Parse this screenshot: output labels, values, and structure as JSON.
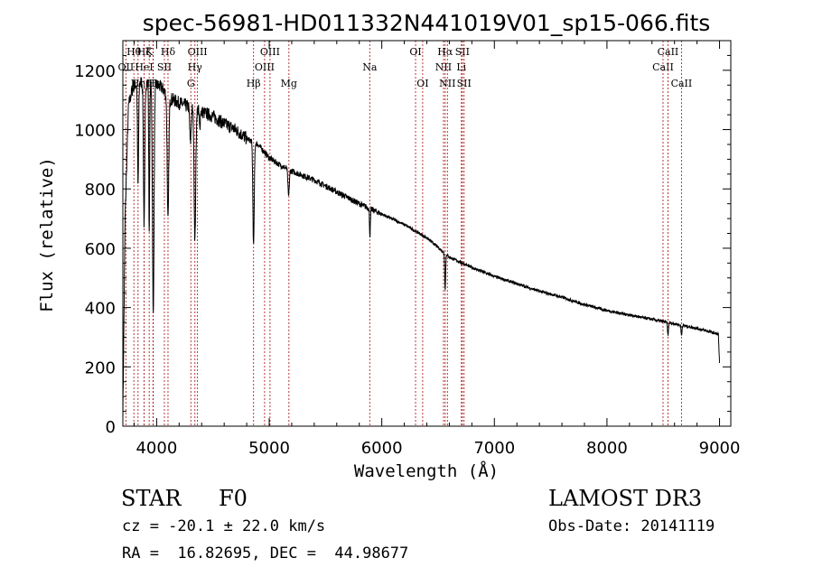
{
  "chart_data": {
    "type": "line",
    "title": "spec-56981-HD011332N441019V01_sp15-066.fits",
    "xlabel": "Wavelength (Å)",
    "ylabel": "Flux (relative)",
    "xlim": [
      3700,
      9100
    ],
    "ylim": [
      0,
      1300
    ],
    "xticks": [
      4000,
      5000,
      6000,
      7000,
      8000,
      9000
    ],
    "yticks": [
      0,
      200,
      400,
      600,
      800,
      1000,
      1200
    ],
    "grid": false,
    "continuum": {
      "x": [
        3700,
        3720,
        3750,
        3780,
        3800,
        3850,
        3900,
        3950,
        4000,
        4050,
        4100,
        4150,
        4200,
        4300,
        4400,
        4500,
        4600,
        4700,
        4800,
        4900,
        5000,
        5100,
        5200,
        5400,
        5600,
        5800,
        6000,
        6200,
        6400,
        6600,
        6800,
        7000,
        7200,
        7400,
        7600,
        7800,
        8000,
        8200,
        8400,
        8600,
        8800,
        8990,
        9000
      ],
      "y": [
        20,
        700,
        1080,
        1130,
        1150,
        1160,
        1160,
        1155,
        1150,
        1140,
        1110,
        1100,
        1090,
        1075,
        1060,
        1045,
        1020,
        1000,
        970,
        950,
        905,
        880,
        860,
        830,
        790,
        750,
        715,
        680,
        635,
        570,
        535,
        505,
        480,
        455,
        435,
        410,
        390,
        375,
        360,
        345,
        330,
        310,
        210
      ]
    },
    "absorption_lines": [
      {
        "center": 3835,
        "depth": 350,
        "width": 5
      },
      {
        "center": 3889,
        "depth": 480,
        "width": 6
      },
      {
        "center": 3934,
        "depth": 500,
        "width": 4
      },
      {
        "center": 3970,
        "depth": 780,
        "width": 7
      },
      {
        "center": 4101,
        "depth": 420,
        "width": 7
      },
      {
        "center": 4300,
        "depth": 120,
        "width": 6
      },
      {
        "center": 4340,
        "depth": 440,
        "width": 7
      },
      {
        "center": 4383,
        "depth": 60,
        "width": 4
      },
      {
        "center": 4861,
        "depth": 350,
        "width": 6
      },
      {
        "center": 5172,
        "depth": 90,
        "width": 6
      },
      {
        "center": 5895,
        "depth": 90,
        "width": 4
      },
      {
        "center": 6563,
        "depth": 120,
        "width": 4
      },
      {
        "center": 8542,
        "depth": 45,
        "width": 4
      },
      {
        "center": 8662,
        "depth": 35,
        "width": 4
      }
    ],
    "lines": [
      {
        "label": "OII",
        "wavelength": 3727,
        "row": 2
      },
      {
        "label": "Hθ",
        "wavelength": 3798,
        "row": 1
      },
      {
        "label": "Hη",
        "wavelength": 3835,
        "row": 3
      },
      {
        "label": "Hζ",
        "wavelength": 3889,
        "row": 1
      },
      {
        "label": "HeI",
        "wavelength": 3889,
        "row": 2
      },
      {
        "label": "K",
        "wavelength": 3934,
        "row": 1
      },
      {
        "label": "H",
        "wavelength": 3968,
        "row": 3
      },
      {
        "label": "Hε",
        "wavelength": 3970,
        "row": 3
      },
      {
        "label": "SII",
        "wavelength": 4069,
        "row": 2
      },
      {
        "label": "Hδ",
        "wavelength": 4101,
        "row": 1
      },
      {
        "label": "G",
        "wavelength": 4304,
        "row": 3
      },
      {
        "label": "Hγ",
        "wavelength": 4340,
        "row": 2
      },
      {
        "label": "OIII",
        "wavelength": 4363,
        "row": 1
      },
      {
        "label": "Hβ",
        "wavelength": 4861,
        "row": 3
      },
      {
        "label": "OIII",
        "wavelength": 4959,
        "row": 2
      },
      {
        "label": "OIII",
        "wavelength": 5007,
        "row": 1
      },
      {
        "label": "Mg",
        "wavelength": 5175,
        "row": 3
      },
      {
        "label": "Na",
        "wavelength": 5893,
        "row": 2
      },
      {
        "label": "OI",
        "wavelength": 6300,
        "row": 1
      },
      {
        "label": "OI",
        "wavelength": 6363,
        "row": 3
      },
      {
        "label": "NII",
        "wavelength": 6548,
        "row": 2
      },
      {
        "label": "Hα",
        "wavelength": 6563,
        "row": 1
      },
      {
        "label": "NII",
        "wavelength": 6583,
        "row": 3
      },
      {
        "label": "Li",
        "wavelength": 6707,
        "row": 2
      },
      {
        "label": "SII",
        "wavelength": 6716,
        "row": 1
      },
      {
        "label": "SII",
        "wavelength": 6731,
        "row": 3
      },
      {
        "label": "CaII",
        "wavelength": 8498,
        "row": 2
      },
      {
        "label": "CaII",
        "wavelength": 8542,
        "row": 1
      },
      {
        "label": "CaII",
        "wavelength": 8662,
        "row": 3
      }
    ]
  },
  "info": {
    "object_class": "STAR",
    "subclass": "F0",
    "survey": "LAMOST DR3",
    "redshift": "cz = -20.1 ± 22.0 km/s",
    "obs_date": "Obs-Date: 20141119",
    "coordinates": "RA =  16.82695, DEC =  44.98677"
  },
  "colors": {
    "spectrum": "#000000",
    "line_markers": "#b22222",
    "axes": "#000000"
  }
}
